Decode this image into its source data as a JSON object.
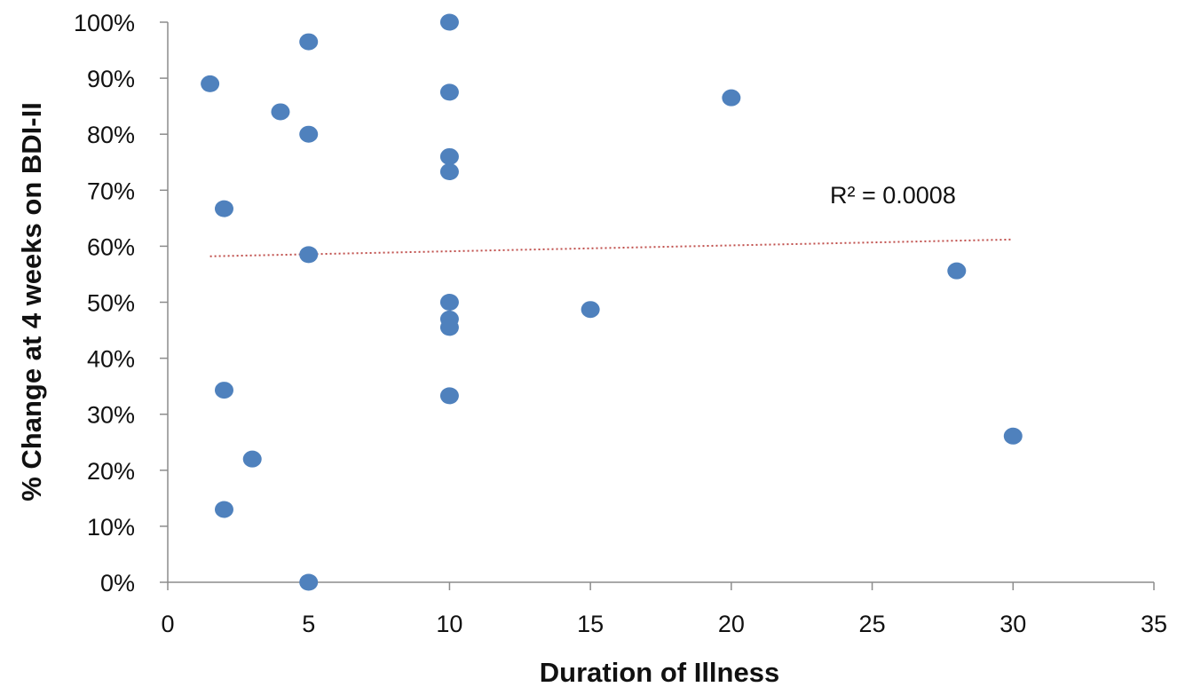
{
  "chart_data": {
    "type": "scatter",
    "xlabel": "Duration of Illness",
    "ylabel": "% Change at 4 weeks on BDI-II",
    "xlim": [
      0,
      35
    ],
    "ylim": [
      0,
      100
    ],
    "x_ticks": [
      0,
      5,
      10,
      15,
      20,
      25,
      30,
      35
    ],
    "y_ticks": [
      0,
      10,
      20,
      30,
      40,
      50,
      60,
      70,
      80,
      90,
      100
    ],
    "x_tick_labels": [
      "0",
      "5",
      "10",
      "15",
      "20",
      "25",
      "30",
      "35"
    ],
    "y_tick_labels": [
      "0%",
      "10%",
      "20%",
      "30%",
      "40%",
      "50%",
      "60%",
      "70%",
      "80%",
      "90%",
      "100%"
    ],
    "grid": false,
    "legend": "none",
    "point_color": "#4F81BD",
    "trendline_color": "#C0504D",
    "points": [
      {
        "x": 1.5,
        "y": 89
      },
      {
        "x": 2,
        "y": 66.7
      },
      {
        "x": 2,
        "y": 34.3
      },
      {
        "x": 2,
        "y": 13
      },
      {
        "x": 3,
        "y": 22
      },
      {
        "x": 4,
        "y": 84
      },
      {
        "x": 5,
        "y": 96.5
      },
      {
        "x": 5,
        "y": 80
      },
      {
        "x": 5,
        "y": 58.5
      },
      {
        "x": 5,
        "y": 0
      },
      {
        "x": 10,
        "y": 100
      },
      {
        "x": 10,
        "y": 87.5
      },
      {
        "x": 10,
        "y": 76
      },
      {
        "x": 10,
        "y": 73.3
      },
      {
        "x": 10,
        "y": 50
      },
      {
        "x": 10,
        "y": 47
      },
      {
        "x": 10,
        "y": 45.5
      },
      {
        "x": 10,
        "y": 33.3
      },
      {
        "x": 15,
        "y": 48.7
      },
      {
        "x": 20,
        "y": 86.5
      },
      {
        "x": 28,
        "y": 55.6
      },
      {
        "x": 30,
        "y": 26.1
      }
    ],
    "trendline": {
      "style": "dotted",
      "x_start": 1.5,
      "y_start": 58.2,
      "x_end": 30,
      "y_end": 61.2
    },
    "annotations": [
      {
        "text": "R² = 0.0008"
      }
    ]
  }
}
